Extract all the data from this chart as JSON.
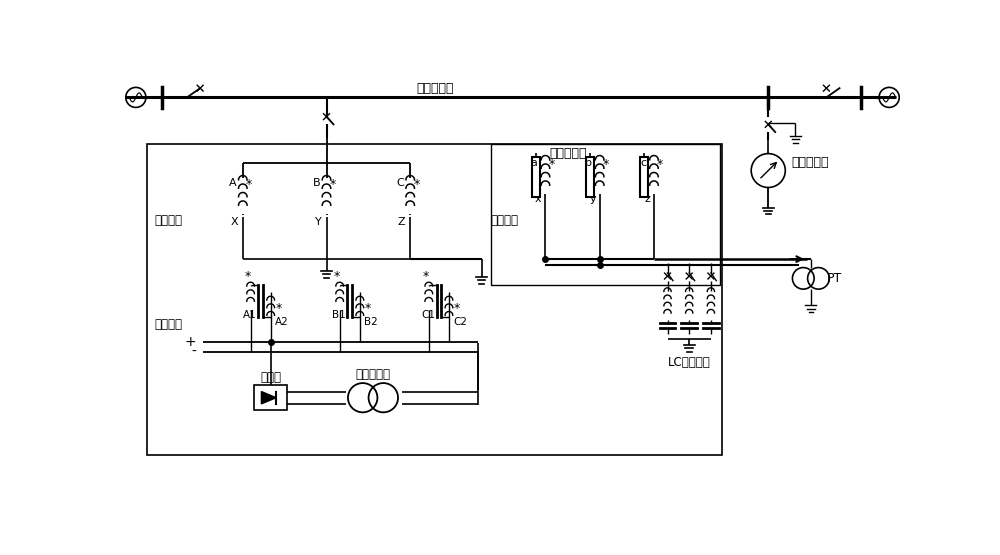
{
  "background_color": "#ffffff",
  "line_color": "#000000",
  "box1_label": "电抗器本体",
  "box2_label": "线路电抗器",
  "label_wangce": "网侧绕组",
  "label_buzhen": "补唇绕组",
  "label_kongzhi": "控制绕组",
  "label_zhengliuqiao": "整流桥",
  "label_licibianqi": "励磁变压器",
  "label_muxian": "母线电抗器",
  "label_LC": "LC滤波器组",
  "label_PT": "PT",
  "figsize": [
    10.0,
    5.55
  ],
  "dpi": 100
}
